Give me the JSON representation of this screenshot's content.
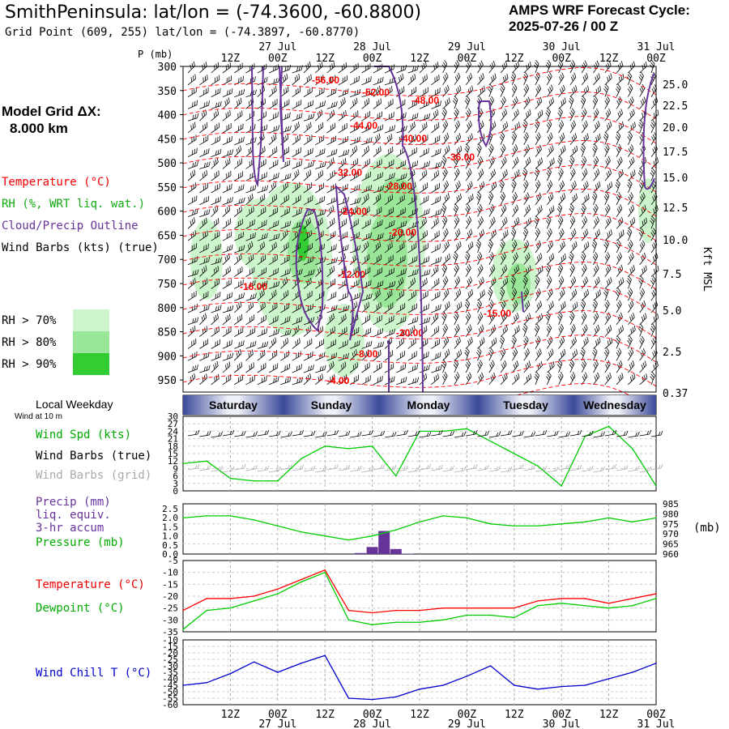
{
  "header": {
    "site_title": "SmithPeninsula:  lat/lon = (-74.3600, -60.8800)",
    "grid_point": "Grid Point (609, 255) lat/lon = (-74.3897, -60.8770)",
    "forecast_title": "AMPS WRF Forecast Cycle:",
    "forecast_cycle": "2025-07-26 / 00  Z",
    "model_grid_label": "Model Grid ΔX:",
    "model_grid_value": "8.000 km"
  },
  "legend": {
    "temperature": "Temperature (°C)",
    "rh": "RH (%, WRT liq. wat.)",
    "cloud": "Cloud/Precip Outline",
    "wind_barbs": "Wind Barbs (kts) (true)",
    "rh70": "RH > 70%",
    "rh80": "RH > 80%",
    "rh90": "RH > 90%"
  },
  "colors": {
    "temperature": "#ff0000",
    "rh70": "#ccf5cc",
    "rh80": "#99e699",
    "rh90": "#33cc33",
    "cloud": "#663399",
    "wind_speed": "#00cc00",
    "dewpoint": "#00cc00",
    "wind_chill": "#0000cc",
    "precip": "#663399",
    "grid_barbs": "#aaaaaa"
  },
  "time_axis": {
    "top_labels": [
      "12Z",
      "00Z",
      "12Z",
      "00Z",
      "12Z",
      "00Z",
      "12Z",
      "00Z",
      "12Z",
      "00Z"
    ],
    "date_labels": [
      "27 Jul",
      "28 Jul",
      "29 Jul",
      "30 Jul",
      "31 Jul"
    ],
    "pressure_axis_title": "P (mb)"
  },
  "weekday": {
    "title": "Local Weekday",
    "sub": "Wind at 10 m",
    "days": [
      "Saturday",
      "Sunday",
      "Monday",
      "Tuesday",
      "Wednesday"
    ]
  },
  "panel_labels": {
    "wind_spd": "Wind Spd (kts)",
    "wind_barbs_true": "Wind Barbs (true)",
    "wind_barbs_grid": "Wind Barbs (grid)",
    "precip": "Precip (mm)",
    "precip2": "liq. equiv.",
    "precip3": "3-hr accum",
    "pressure": "Pressure (mb)",
    "pressure_unit": "(mb)",
    "temperature": "Temperature (°C)",
    "dewpoint": "Dewpoint (°C)",
    "wind_chill": "Wind Chill T (°C)",
    "kft_msl": "Kft MSL"
  },
  "chart_data": [
    {
      "type": "heatmap",
      "name": "cross-section",
      "y_pressure_ticks": [
        "300",
        "350",
        "400",
        "450",
        "500",
        "550",
        "600",
        "650",
        "700",
        "750",
        "800",
        "850",
        "900",
        "950"
      ],
      "right_height_ticks": [
        "25.0",
        "22.5",
        "20.0",
        "17.5",
        "15.0",
        "12.5",
        "10.0",
        "7.5",
        "5.0",
        "2.5",
        "0.37"
      ],
      "temperature_contour_labels": [
        "-56.00",
        "-52.00",
        "-48.00",
        "-44.00",
        "-40.00",
        "-36.00",
        "-32.00",
        "-28.00",
        "-24.00",
        "-20.00",
        "-16.00",
        "-12.00",
        "-15.00",
        "-20.00",
        "-8.00",
        "-4.00"
      ]
    },
    {
      "type": "line",
      "name": "wind-speed",
      "yticks": [
        "30",
        "27",
        "24",
        "21",
        "18",
        "15",
        "12",
        "9",
        "6",
        "3",
        "0"
      ],
      "ylim": [
        0,
        30
      ],
      "x_hours": [
        0,
        6,
        12,
        18,
        24,
        30,
        36,
        42,
        48,
        54,
        60,
        66,
        72,
        78,
        84,
        90,
        96,
        102,
        108,
        114,
        120
      ],
      "values": [
        11,
        12,
        5,
        4,
        4,
        13,
        18,
        17,
        18,
        6,
        24,
        24,
        25,
        20,
        15,
        10,
        2,
        22,
        26,
        17,
        2
      ]
    },
    {
      "type": "bar",
      "name": "precip",
      "ylim": [
        0,
        2.5
      ],
      "yticks_left": [
        "2.5",
        "2.0",
        "1.5",
        "1.0",
        "0.5",
        "0.0"
      ],
      "yticks_right": [
        "985",
        "980",
        "975",
        "970",
        "965",
        "960"
      ],
      "x_hours": [
        45,
        48,
        51,
        54,
        57
      ],
      "values": [
        0.05,
        0.35,
        1.15,
        0.25,
        0.02
      ],
      "pressure_values": [
        978,
        979,
        979,
        977,
        974,
        971,
        969,
        967,
        969,
        972,
        976,
        979,
        978,
        975,
        974,
        974,
        975,
        976,
        978,
        976,
        978
      ]
    },
    {
      "type": "line",
      "name": "temperature-dewpoint",
      "ylim": [
        -35,
        -5
      ],
      "yticks": [
        "-5",
        "-10",
        "-15",
        "-20",
        "-25",
        "-30",
        "-35"
      ],
      "temperature": [
        -26,
        -21,
        -21,
        -20,
        -17,
        -13,
        -9,
        -26,
        -27,
        -26,
        -26,
        -25,
        -25,
        -25,
        -25,
        -22,
        -21,
        -21,
        -23,
        -21,
        -19
      ],
      "dewpoint": [
        -34,
        -26,
        -25,
        -22,
        -19,
        -14,
        -10,
        -30,
        -32,
        -31,
        -31,
        -30,
        -28,
        -28,
        -29,
        -24,
        -23,
        -24,
        -25,
        -24,
        -21
      ]
    },
    {
      "type": "line",
      "name": "wind-chill",
      "ylim": [
        -60,
        -10
      ],
      "yticks": [
        "-10",
        "-15",
        "-20",
        "-25",
        "-30",
        "-35",
        "-40",
        "-45",
        "-50",
        "-55",
        "-60"
      ],
      "values": [
        -45,
        -43,
        -36,
        -27,
        -35,
        -28,
        -22,
        -55,
        -56,
        -54,
        -48,
        -45,
        -38,
        -30,
        -45,
        -48,
        -46,
        -45,
        -40,
        -35,
        -28
      ]
    }
  ]
}
